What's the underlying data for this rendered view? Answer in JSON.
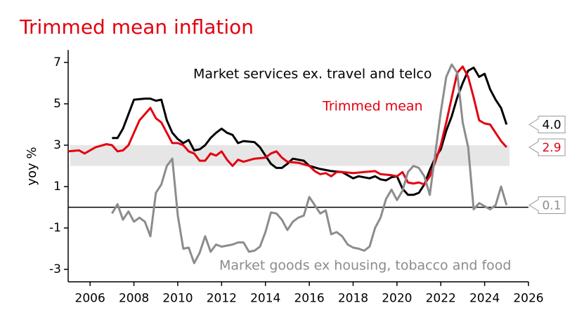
{
  "chart_data": {
    "type": "line",
    "title": "Trimmed mean inflation",
    "ylabel": "yoy %",
    "xlim": [
      2005,
      2026
    ],
    "xticks": [
      2006,
      2008,
      2010,
      2012,
      2014,
      2016,
      2018,
      2020,
      2022,
      2024,
      2026
    ],
    "ylim": [
      -3.6,
      7.6
    ],
    "yticks": [
      -3,
      -1,
      1,
      3,
      5,
      7
    ],
    "band": [
      2,
      3
    ],
    "hline": 0,
    "series": [
      {
        "name": "Market services ex. travel and telco",
        "color": "#000000",
        "x": [
          2007.0,
          2007.25,
          2007.5,
          2007.75,
          2008.0,
          2008.5,
          2008.75,
          2009.0,
          2009.25,
          2009.5,
          2009.75,
          2010.0,
          2010.25,
          2010.5,
          2010.75,
          2011.0,
          2011.25,
          2011.5,
          2011.75,
          2012.0,
          2012.25,
          2012.5,
          2012.75,
          2013.0,
          2013.5,
          2013.75,
          2014.0,
          2014.25,
          2014.5,
          2014.75,
          2015.0,
          2015.25,
          2015.75,
          2016.0,
          2016.5,
          2017.0,
          2017.5,
          2017.75,
          2018.0,
          2018.25,
          2018.75,
          2019.0,
          2019.25,
          2019.5,
          2019.75,
          2020.0,
          2020.25,
          2020.5,
          2020.75,
          2021.0,
          2021.25,
          2021.5,
          2021.75,
          2022.0,
          2022.25,
          2022.5,
          2022.75,
          2023.0,
          2023.25,
          2023.5,
          2023.75,
          2024.0,
          2024.25,
          2024.5,
          2024.75,
          2025.0
        ],
        "values": [
          3.35,
          3.35,
          3.8,
          4.5,
          5.2,
          5.25,
          5.25,
          5.15,
          5.2,
          4.2,
          3.6,
          3.3,
          3.1,
          3.25,
          2.75,
          2.8,
          3.0,
          3.35,
          3.6,
          3.8,
          3.6,
          3.5,
          3.1,
          3.2,
          3.15,
          2.9,
          2.5,
          2.1,
          1.9,
          1.9,
          2.1,
          2.35,
          2.25,
          2.0,
          1.85,
          1.75,
          1.7,
          1.55,
          1.4,
          1.5,
          1.4,
          1.5,
          1.35,
          1.3,
          1.45,
          1.5,
          0.9,
          0.6,
          0.6,
          0.7,
          1.1,
          1.8,
          2.4,
          2.8,
          3.7,
          4.4,
          5.3,
          6.0,
          6.6,
          6.75,
          6.3,
          6.45,
          5.7,
          5.2,
          4.8,
          4.0
        ],
        "end_label": "4.0"
      },
      {
        "name": "Trimmed mean",
        "color": "#e3000f",
        "x": [
          2005.0,
          2005.5,
          2005.75,
          2006.25,
          2006.75,
          2007.0,
          2007.25,
          2007.5,
          2007.75,
          2008.0,
          2008.25,
          2008.5,
          2008.75,
          2009.0,
          2009.25,
          2009.5,
          2009.75,
          2010.0,
          2010.25,
          2010.5,
          2010.75,
          2011.0,
          2011.25,
          2011.5,
          2011.75,
          2012.0,
          2012.25,
          2012.5,
          2012.75,
          2013.0,
          2013.5,
          2014.0,
          2014.25,
          2014.5,
          2014.75,
          2015.0,
          2015.5,
          2016.0,
          2016.25,
          2016.5,
          2016.75,
          2017.0,
          2017.25,
          2017.5,
          2018.0,
          2018.5,
          2019.0,
          2019.25,
          2019.75,
          2020.0,
          2020.25,
          2020.5,
          2020.75,
          2021.0,
          2021.25,
          2021.5,
          2021.75,
          2022.0,
          2022.25,
          2022.5,
          2022.75,
          2023.0,
          2023.25,
          2023.5,
          2023.75,
          2024.0,
          2024.25,
          2024.5,
          2024.75,
          2025.0
        ],
        "values": [
          2.7,
          2.75,
          2.6,
          2.9,
          3.05,
          3.0,
          2.7,
          2.75,
          3.0,
          3.6,
          4.2,
          4.5,
          4.8,
          4.3,
          4.1,
          3.6,
          3.1,
          3.1,
          3.0,
          2.7,
          2.6,
          2.25,
          2.25,
          2.6,
          2.5,
          2.7,
          2.3,
          2.0,
          2.3,
          2.2,
          2.35,
          2.4,
          2.6,
          2.7,
          2.4,
          2.2,
          2.15,
          2.0,
          1.75,
          1.6,
          1.65,
          1.5,
          1.7,
          1.7,
          1.65,
          1.7,
          1.75,
          1.6,
          1.55,
          1.5,
          1.7,
          1.2,
          1.15,
          1.2,
          1.1,
          1.5,
          2.2,
          3.0,
          4.1,
          5.3,
          6.5,
          6.8,
          6.3,
          5.3,
          4.2,
          4.05,
          4.0,
          3.6,
          3.2,
          2.9
        ],
        "end_label": "2.9"
      },
      {
        "name": "Market goods ex housing, tobacco and food",
        "color": "#8c8c8c",
        "x": [
          2007.0,
          2007.25,
          2007.5,
          2007.75,
          2008.0,
          2008.25,
          2008.5,
          2008.75,
          2009.0,
          2009.25,
          2009.5,
          2009.75,
          2010.0,
          2010.25,
          2010.5,
          2010.75,
          2011.0,
          2011.25,
          2011.5,
          2011.75,
          2012.0,
          2012.5,
          2012.75,
          2013.0,
          2013.25,
          2013.5,
          2013.75,
          2014.0,
          2014.25,
          2014.5,
          2014.75,
          2015.0,
          2015.25,
          2015.5,
          2015.75,
          2016.0,
          2016.25,
          2016.5,
          2016.75,
          2017.0,
          2017.25,
          2017.5,
          2017.75,
          2018.0,
          2018.25,
          2018.5,
          2018.75,
          2019.0,
          2019.25,
          2019.5,
          2019.75,
          2020.0,
          2020.25,
          2020.5,
          2020.75,
          2021.0,
          2021.25,
          2021.5,
          2021.75,
          2022.0,
          2022.25,
          2022.5,
          2022.75,
          2023.0,
          2023.25,
          2023.5,
          2023.75,
          2024.0,
          2024.25,
          2024.5,
          2024.75,
          2025.0
        ],
        "values": [
          -0.3,
          0.15,
          -0.6,
          -0.2,
          -0.7,
          -0.5,
          -0.7,
          -1.4,
          0.7,
          1.1,
          2.0,
          2.35,
          -0.4,
          -2.0,
          -1.95,
          -2.7,
          -2.2,
          -1.4,
          -2.15,
          -1.8,
          -1.9,
          -1.8,
          -1.7,
          -1.7,
          -2.15,
          -2.1,
          -1.9,
          -1.2,
          -0.25,
          -0.3,
          -0.6,
          -1.1,
          -0.7,
          -0.5,
          -0.4,
          0.5,
          0.1,
          -0.3,
          -0.15,
          -1.3,
          -1.2,
          -1.4,
          -1.8,
          -1.95,
          -2.0,
          -2.1,
          -1.9,
          -1.0,
          -0.5,
          0.4,
          0.85,
          0.35,
          0.8,
          1.7,
          2.0,
          1.9,
          1.5,
          0.6,
          2.6,
          4.6,
          6.3,
          6.9,
          6.5,
          4.1,
          2.9,
          -0.1,
          0.2,
          0.05,
          -0.1,
          0.1,
          1.0,
          0.1
        ],
        "end_label": "0.1"
      }
    ]
  }
}
